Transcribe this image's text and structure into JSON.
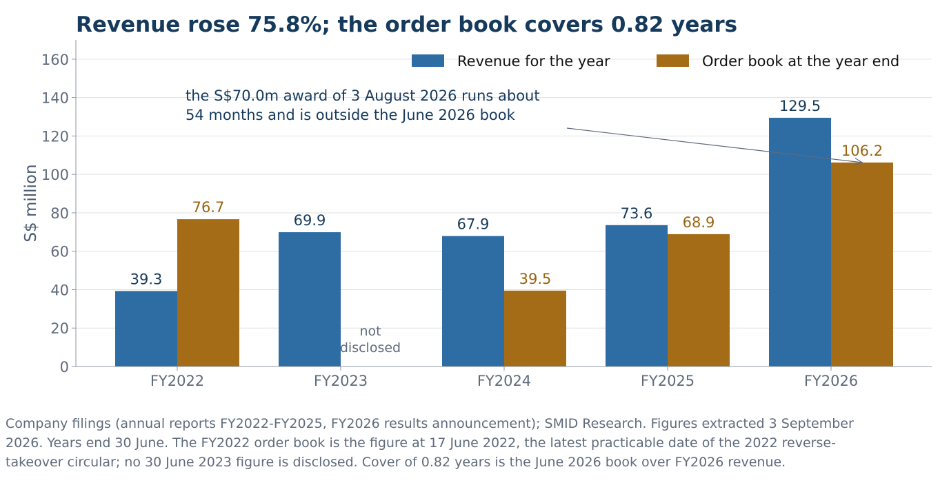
{
  "chart_data": {
    "type": "bar",
    "title": "Revenue rose 75.8%; the order book covers 0.82 years",
    "ylabel": "S$ million",
    "xlabel": "",
    "ylim": [
      0,
      170
    ],
    "yticks": [
      0,
      20,
      40,
      60,
      80,
      100,
      120,
      140,
      160
    ],
    "grid": "horizontal",
    "legend_position": "top-right",
    "categories": [
      "FY2022",
      "FY2023",
      "FY2024",
      "FY2025",
      "FY2026"
    ],
    "series": [
      {
        "name": "Revenue for the year",
        "color": "#2e6ca4",
        "label_color": "#163a5c",
        "values": [
          39.3,
          69.9,
          67.9,
          73.6,
          129.5
        ],
        "labels": [
          "39.3",
          "69.9",
          "67.9",
          "73.6",
          "129.5"
        ]
      },
      {
        "name": "Order book at the year end",
        "color": "#a56c18",
        "label_color": "#9a6410",
        "values": [
          76.7,
          null,
          39.5,
          68.9,
          106.2
        ],
        "labels": [
          "76.7",
          "",
          "39.5",
          "68.9",
          "106.2"
        ]
      }
    ],
    "missing_note": {
      "category": "FY2023",
      "lines": [
        "not",
        "disclosed"
      ]
    },
    "annotation": {
      "lines": [
        "the S$70.0m award of 3 August 2026 runs about",
        "54 months and is outside the June 2026 book"
      ],
      "points_to": {
        "category": "FY2026",
        "series": 1,
        "value": 106.2
      }
    }
  },
  "source_note": "Company filings (annual reports FY2022-FY2025, FY2026 results announcement); SMID Research. Figures extracted 3 September 2026. Years end 30 June. The FY2022 order book is the figure at 17 June 2022, the latest practicable date of the 2022 reverse-takeover circular; no 30 June 2023 figure is disclosed. Cover of 0.82 years is the June 2026 book over FY2026 revenue."
}
